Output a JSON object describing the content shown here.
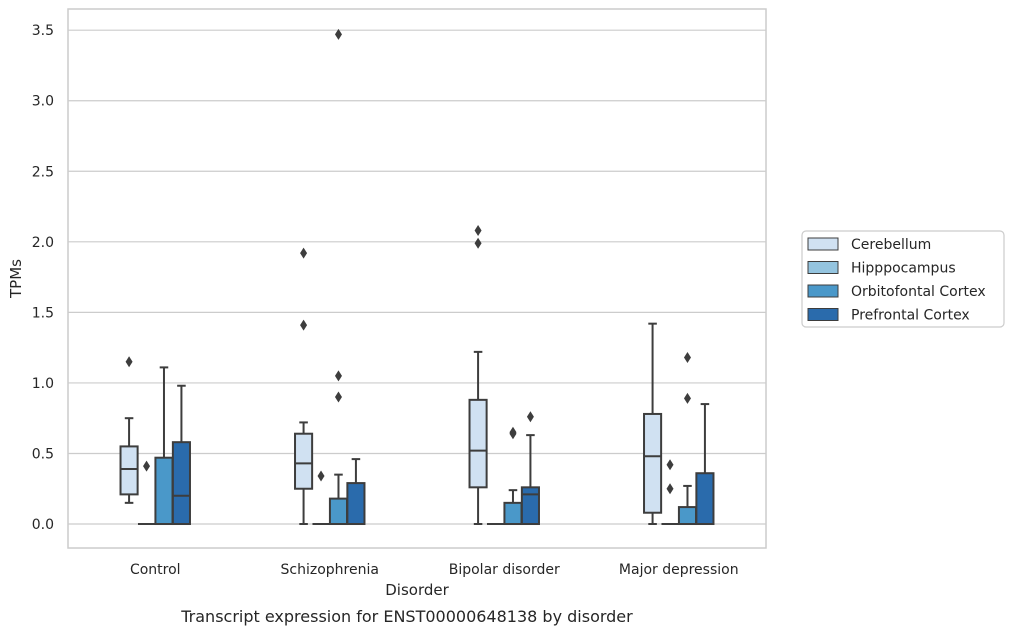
{
  "caption": "Transcript expression for ENST00000648138 by disorder",
  "chart_data": {
    "type": "boxplot",
    "xlabel": "Disorder",
    "ylabel": "TPMs",
    "ylim": [
      -0.17,
      3.65
    ],
    "yticks": [
      "0.0",
      "0.5",
      "1.0",
      "1.5",
      "2.0",
      "2.5",
      "3.0",
      "3.5"
    ],
    "ytick_values": [
      0.0,
      0.5,
      1.0,
      1.5,
      2.0,
      2.5,
      3.0,
      3.5
    ],
    "grid": "horizontal",
    "legend_position": "right",
    "categories": [
      "Control",
      "Schizophrenia",
      "Bipolar disorder",
      "Major depression"
    ],
    "series": [
      {
        "name": "Cerebellum",
        "color": "#d0e1f2",
        "boxes": [
          {
            "whislo": 0.15,
            "q1": 0.21,
            "med": 0.39,
            "q3": 0.55,
            "whishi": 0.75,
            "fliers": [
              1.15
            ]
          },
          {
            "whislo": 0.0,
            "q1": 0.25,
            "med": 0.43,
            "q3": 0.64,
            "whishi": 0.72,
            "fliers": [
              1.92,
              1.41
            ]
          },
          {
            "whislo": 0.0,
            "q1": 0.26,
            "med": 0.52,
            "q3": 0.88,
            "whishi": 1.22,
            "fliers": [
              2.08,
              1.99
            ]
          },
          {
            "whislo": 0.0,
            "q1": 0.08,
            "med": 0.48,
            "q3": 0.78,
            "whishi": 1.42,
            "fliers": []
          }
        ]
      },
      {
        "name": "Hipppocampus",
        "color": "#94c4df",
        "boxes": [
          {
            "whislo": 0.0,
            "q1": 0.0,
            "med": 0.0,
            "q3": 0.0,
            "whishi": 0.0,
            "fliers": [
              0.41
            ]
          },
          {
            "whislo": 0.0,
            "q1": 0.0,
            "med": 0.0,
            "q3": 0.0,
            "whishi": 0.0,
            "fliers": [
              0.34
            ]
          },
          {
            "whislo": 0.0,
            "q1": 0.0,
            "med": 0.0,
            "q3": 0.0,
            "whishi": 0.0,
            "fliers": []
          },
          {
            "whislo": 0.0,
            "q1": 0.0,
            "med": 0.0,
            "q3": 0.0,
            "whishi": 0.0,
            "fliers": [
              0.42,
              0.25
            ]
          }
        ]
      },
      {
        "name": "Orbitofontal Cortex",
        "color": "#4a98c9",
        "boxes": [
          {
            "whislo": 0.0,
            "q1": 0.0,
            "med": 0.0,
            "q3": 0.47,
            "whishi": 1.11,
            "fliers": []
          },
          {
            "whislo": 0.0,
            "q1": 0.0,
            "med": 0.0,
            "q3": 0.18,
            "whishi": 0.35,
            "fliers": [
              3.47,
              1.05,
              0.9
            ]
          },
          {
            "whislo": 0.0,
            "q1": 0.0,
            "med": 0.0,
            "q3": 0.15,
            "whishi": 0.24,
            "fliers": [
              0.65,
              0.64
            ]
          },
          {
            "whislo": 0.0,
            "q1": 0.0,
            "med": 0.0,
            "q3": 0.12,
            "whishi": 0.27,
            "fliers": [
              1.18,
              0.89
            ]
          }
        ]
      },
      {
        "name": "Prefrontal Cortex",
        "color": "#2a6bac",
        "boxes": [
          {
            "whislo": 0.0,
            "q1": 0.0,
            "med": 0.2,
            "q3": 0.58,
            "whishi": 0.98,
            "fliers": []
          },
          {
            "whislo": 0.0,
            "q1": 0.0,
            "med": 0.0,
            "q3": 0.29,
            "whishi": 0.46,
            "fliers": []
          },
          {
            "whislo": 0.0,
            "q1": 0.0,
            "med": 0.21,
            "q3": 0.26,
            "whishi": 0.63,
            "fliers": [
              0.76
            ]
          },
          {
            "whislo": 0.0,
            "q1": 0.0,
            "med": 0.0,
            "q3": 0.36,
            "whishi": 0.85,
            "fliers": []
          }
        ]
      }
    ]
  }
}
